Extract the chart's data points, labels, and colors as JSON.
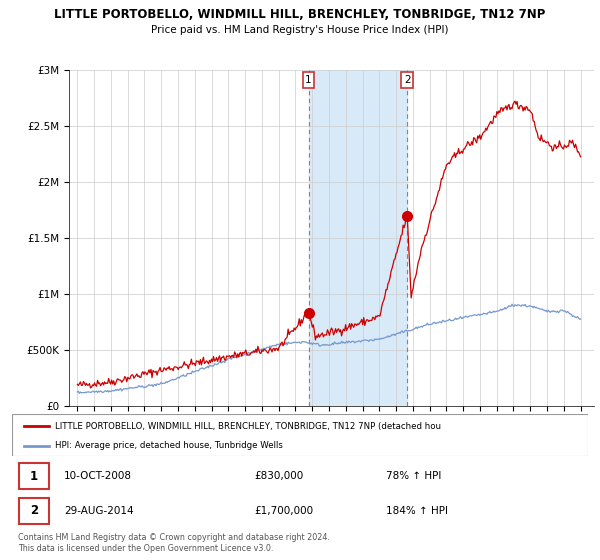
{
  "title": "LITTLE PORTOBELLO, WINDMILL HILL, BRENCHLEY, TONBRIDGE, TN12 7NP",
  "subtitle": "Price paid vs. HM Land Registry's House Price Index (HPI)",
  "ylim": [
    0,
    3000000
  ],
  "yticks": [
    0,
    500000,
    1000000,
    1500000,
    2000000,
    2500000,
    3000000
  ],
  "ytick_labels": [
    "£0",
    "£500K",
    "£1M",
    "£1.5M",
    "£2M",
    "£2.5M",
    "£3M"
  ],
  "red_line_color": "#cc0000",
  "blue_line_color": "#7799cc",
  "shaded_color": "#d8eaf8",
  "vline_color": "#cc6666",
  "marker_color": "#cc0000",
  "purchase1": {
    "year": 2008.78,
    "value": 830000,
    "label": "1",
    "date": "10-OCT-2008",
    "pct": "78%"
  },
  "purchase2": {
    "year": 2014.66,
    "value": 1700000,
    "label": "2",
    "date": "29-AUG-2014",
    "pct": "184%"
  },
  "legend_red": "LITTLE PORTOBELLO, WINDMILL HILL, BRENCHLEY, TONBRIDGE, TN12 7NP (detached hou",
  "legend_blue": "HPI: Average price, detached house, Tunbridge Wells",
  "footnote": "Contains HM Land Registry data © Crown copyright and database right 2024.\nThis data is licensed under the Open Government Licence v3.0.",
  "background_color": "#ffffff",
  "grid_color": "#cccccc"
}
